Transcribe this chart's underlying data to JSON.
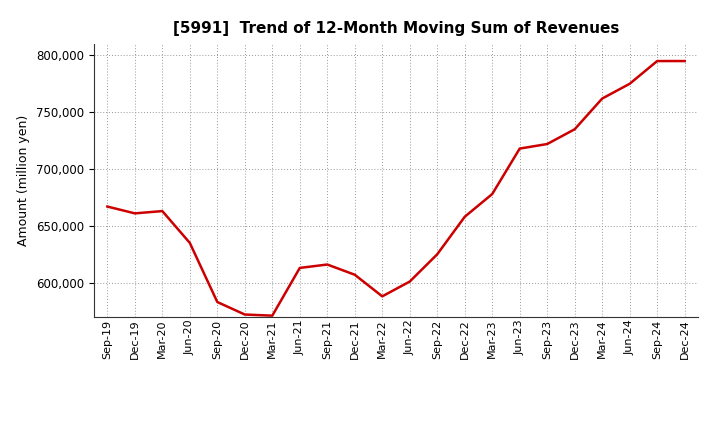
{
  "title": "[5991]  Trend of 12-Month Moving Sum of Revenues",
  "ylabel": "Amount (million yen)",
  "line_color": "#cc0000",
  "background_color": "#ffffff",
  "plot_bg_color": "#ffffff",
  "grid_color": "#999999",
  "ylim": [
    570000,
    810000
  ],
  "yticks": [
    600000,
    650000,
    700000,
    750000,
    800000
  ],
  "x_labels": [
    "Sep-19",
    "Dec-19",
    "Mar-20",
    "Jun-20",
    "Sep-20",
    "Dec-20",
    "Mar-21",
    "Jun-21",
    "Sep-21",
    "Dec-21",
    "Mar-22",
    "Jun-22",
    "Sep-22",
    "Dec-22",
    "Mar-23",
    "Jun-23",
    "Sep-23",
    "Dec-23",
    "Mar-24",
    "Jun-24",
    "Sep-24",
    "Dec-24"
  ],
  "values": [
    667000,
    661000,
    663000,
    635000,
    583000,
    572000,
    571000,
    613000,
    616000,
    607000,
    588000,
    601000,
    625000,
    658000,
    678000,
    718000,
    722000,
    735000,
    762000,
    775000,
    795000,
    795000
  ]
}
